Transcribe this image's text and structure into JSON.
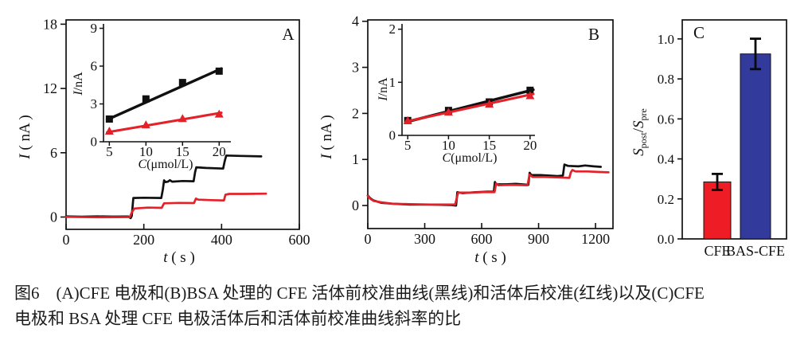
{
  "caption": {
    "line1": "图6　(A)CFE 电极和(B)BSA 处理的 CFE 活体前校准曲线(黑线)和活体后校准(红线)以及(C)CFE",
    "line2": "电极和 BSA 处理 CFE 电极活体后和活体前校准曲线斜率的比"
  },
  "colors": {
    "black": "#101010",
    "red": "#e32128",
    "bar_red": "#ee1c25",
    "bar_blue": "#323a9c"
  },
  "chart_data": [
    {
      "id": "A",
      "type": "line",
      "panel_label": "A",
      "xlabel": [
        {
          "t": "t",
          "it": true
        },
        {
          "t": " ( s )"
        }
      ],
      "ylabel": [
        {
          "t": "I",
          "it": true
        },
        {
          "t": " ( nA )"
        }
      ],
      "xlim": [
        0,
        600
      ],
      "ylim": [
        -1.15,
        18.4
      ],
      "xticks": [
        0,
        200,
        400,
        600
      ],
      "yticks": [
        0,
        6,
        12,
        18
      ],
      "series": [
        {
          "name": "pre-in-vivo calibration (black)",
          "color": "black",
          "points": [
            [
              0,
              0.06
            ],
            [
              40,
              0.03
            ],
            [
              80,
              0.06
            ],
            [
              120,
              0.04
            ],
            [
              160,
              0.05
            ],
            [
              166,
              -0.1
            ],
            [
              169,
              0.1
            ],
            [
              173,
              1.78
            ],
            [
              200,
              1.8
            ],
            [
              245,
              1.78
            ],
            [
              249,
              2.6
            ],
            [
              252,
              3.42
            ],
            [
              256,
              3.26
            ],
            [
              262,
              3.3
            ],
            [
              267,
              3.44
            ],
            [
              273,
              3.3
            ],
            [
              300,
              3.36
            ],
            [
              328,
              3.34
            ],
            [
              332,
              4.2
            ],
            [
              335,
              4.64
            ],
            [
              360,
              4.58
            ],
            [
              404,
              4.52
            ],
            [
              408,
              5.2
            ],
            [
              412,
              5.74
            ],
            [
              450,
              5.7
            ],
            [
              502,
              5.66
            ]
          ]
        },
        {
          "name": "post-in-vivo calibration (red)",
          "color": "red",
          "points": [
            [
              0,
              0.02
            ],
            [
              80,
              -0.02
            ],
            [
              164,
              0.0
            ],
            [
              170,
              0.5
            ],
            [
              176,
              0.8
            ],
            [
              210,
              0.88
            ],
            [
              246,
              0.86
            ],
            [
              252,
              1.28
            ],
            [
              290,
              1.32
            ],
            [
              329,
              1.3
            ],
            [
              334,
              1.72
            ],
            [
              340,
              1.62
            ],
            [
              372,
              1.58
            ],
            [
              406,
              1.55
            ],
            [
              410,
              2.08
            ],
            [
              420,
              2.16
            ],
            [
              460,
              2.16
            ],
            [
              514,
              2.18
            ]
          ]
        }
      ],
      "inset": {
        "type": "scatter",
        "xlabel": [
          {
            "t": "C",
            "it": true
          },
          {
            "t": "(μmol/L)"
          }
        ],
        "ylabel": [
          {
            "t": "I",
            "it": true
          },
          {
            "t": "/nA"
          }
        ],
        "xlim": [
          4.2,
          21.6
        ],
        "ylim": [
          0,
          9.35
        ],
        "xticks": [
          5,
          10,
          15,
          20
        ],
        "yticks": [
          0,
          3,
          6,
          9
        ],
        "series": [
          {
            "name": "pre (black)",
            "color": "black",
            "marker": "square",
            "x": [
              5,
              10,
              15,
              20
            ],
            "y": [
              1.8,
              3.4,
              4.7,
              5.6
            ],
            "fit": [
              [
                4.7,
                1.75
              ],
              [
                20.3,
                5.8
              ]
            ]
          },
          {
            "name": "post (red)",
            "color": "red",
            "marker": "triangle",
            "x": [
              5,
              10,
              15,
              20
            ],
            "y": [
              0.85,
              1.35,
              1.85,
              2.2
            ],
            "fit": [
              [
                4.7,
                0.75
              ],
              [
                20.3,
                2.3
              ]
            ]
          }
        ]
      }
    },
    {
      "id": "B",
      "type": "line",
      "panel_label": "B",
      "xlabel": [
        {
          "t": "t",
          "it": true
        },
        {
          "t": " ( s )"
        }
      ],
      "ylabel": [
        {
          "t": "I",
          "it": true
        },
        {
          "t": " ( nA )"
        }
      ],
      "xlim": [
        0,
        1292
      ],
      "ylim": [
        -0.5,
        4.03
      ],
      "xticks": [
        0,
        300,
        600,
        900,
        1200
      ],
      "yticks": [
        0,
        1,
        2,
        3,
        4
      ],
      "series": [
        {
          "name": "pre-in-vivo calibration (black)",
          "color": "black",
          "points": [
            [
              0,
              0.22
            ],
            [
              12,
              0.16
            ],
            [
              30,
              0.11
            ],
            [
              70,
              0.06
            ],
            [
              130,
              0.04
            ],
            [
              220,
              0.02
            ],
            [
              330,
              0.02
            ],
            [
              440,
              0.01
            ],
            [
              465,
              0.0
            ],
            [
              472,
              0.29
            ],
            [
              500,
              0.27
            ],
            [
              570,
              0.29
            ],
            [
              630,
              0.3
            ],
            [
              664,
              0.3
            ],
            [
              670,
              0.51
            ],
            [
              678,
              0.46
            ],
            [
              720,
              0.46
            ],
            [
              780,
              0.47
            ],
            [
              846,
              0.45
            ],
            [
              853,
              0.71
            ],
            [
              862,
              0.66
            ],
            [
              910,
              0.66
            ],
            [
              1000,
              0.64
            ],
            [
              1028,
              0.65
            ],
            [
              1036,
              0.89
            ],
            [
              1055,
              0.86
            ],
            [
              1110,
              0.85
            ],
            [
              1145,
              0.87
            ],
            [
              1190,
              0.85
            ],
            [
              1228,
              0.84
            ]
          ]
        },
        {
          "name": "post-in-vivo calibration (red)",
          "color": "red",
          "points": [
            [
              0,
              0.21
            ],
            [
              12,
              0.15
            ],
            [
              30,
              0.1
            ],
            [
              70,
              0.07
            ],
            [
              130,
              0.04
            ],
            [
              220,
              0.03
            ],
            [
              330,
              0.02
            ],
            [
              460,
              0.02
            ],
            [
              476,
              0.28
            ],
            [
              540,
              0.28
            ],
            [
              610,
              0.29
            ],
            [
              668,
              0.29
            ],
            [
              676,
              0.48
            ],
            [
              688,
              0.44
            ],
            [
              760,
              0.45
            ],
            [
              842,
              0.44
            ],
            [
              852,
              0.67
            ],
            [
              868,
              0.62
            ],
            [
              930,
              0.62
            ],
            [
              1005,
              0.61
            ],
            [
              1062,
              0.6
            ],
            [
              1070,
              0.72
            ],
            [
              1078,
              0.77
            ],
            [
              1095,
              0.74
            ],
            [
              1160,
              0.74
            ],
            [
              1210,
              0.73
            ],
            [
              1268,
              0.72
            ]
          ]
        }
      ],
      "inset": {
        "type": "scatter",
        "xlabel": [
          {
            "t": "C",
            "it": true
          },
          {
            "t": "(μmol/L)"
          }
        ],
        "ylabel": [
          {
            "t": "I",
            "it": true
          },
          {
            "t": "/nA"
          }
        ],
        "xlim": [
          4.3,
          20.6
        ],
        "ylim": [
          0,
          2.1
        ],
        "xticks": [
          5,
          10,
          15,
          20
        ],
        "yticks": [
          0,
          1,
          2
        ],
        "series": [
          {
            "name": "pre (black)",
            "color": "black",
            "marker": "square",
            "x": [
              5,
              10,
              15,
              20
            ],
            "y": [
              0.28,
              0.47,
              0.63,
              0.85
            ],
            "fit": [
              [
                4.8,
                0.25
              ],
              [
                20.4,
                0.86
              ]
            ]
          },
          {
            "name": "post (red)",
            "color": "red",
            "marker": "triangle",
            "x": [
              5,
              10,
              15,
              20
            ],
            "y": [
              0.28,
              0.44,
              0.59,
              0.75
            ],
            "fit": [
              [
                4.8,
                0.26
              ],
              [
                20.4,
                0.78
              ]
            ]
          }
        ]
      }
    },
    {
      "id": "C",
      "type": "bar",
      "panel_label": "C",
      "ylabel_parts": [
        {
          "t": "S",
          "it": true
        },
        {
          "t": "post",
          "sub": true
        },
        {
          "t": "/"
        },
        {
          "t": "S",
          "it": true
        },
        {
          "t": "pre",
          "sub": true
        }
      ],
      "ylim": [
        0,
        1.095
      ],
      "yticks": [
        0.0,
        0.2,
        0.4,
        0.6,
        0.8,
        1.0
      ],
      "tick_format": "1f",
      "categories": [
        "CFE",
        "BAS-CFE"
      ],
      "values": [
        0.285,
        0.925
      ],
      "errors": [
        0.04,
        0.076
      ],
      "bar_colors": [
        "bar_red",
        "bar_blue"
      ]
    }
  ]
}
